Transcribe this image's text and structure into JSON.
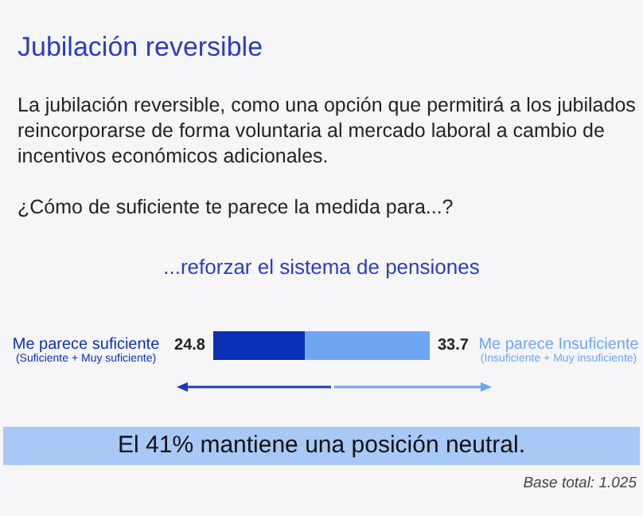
{
  "chart_data": {
    "type": "bar",
    "title": "Jubilación reversible",
    "subtitle": "La jubilación reversible, como una opción que permitirá a los jubilados reincorporarse de forma voluntaria al mercado laboral a cambio de incentivos económicos adicionales.",
    "annotations": [
      "¿Cómo de suficiente te parece la medida para...?",
      "...reforzar el sistema de pensiones",
      "El 41% mantiene una posición neutral.",
      "Base total:  1.025"
    ],
    "categories": [
      null
    ],
    "orientation": "horizontal",
    "stacked": true,
    "data_labels": true,
    "series": [
      {
        "name": "Me parece suficiente\n(Suficiente + Muy suficiente)",
        "color": "#0b2fb5",
        "values": [
          24.8
        ]
      },
      {
        "name": "Me parece Insuficiente\n(Insuficiente + Muy insuficiente)",
        "color": "#6ea6f2",
        "values": [
          33.7
        ]
      }
    ]
  }
}
